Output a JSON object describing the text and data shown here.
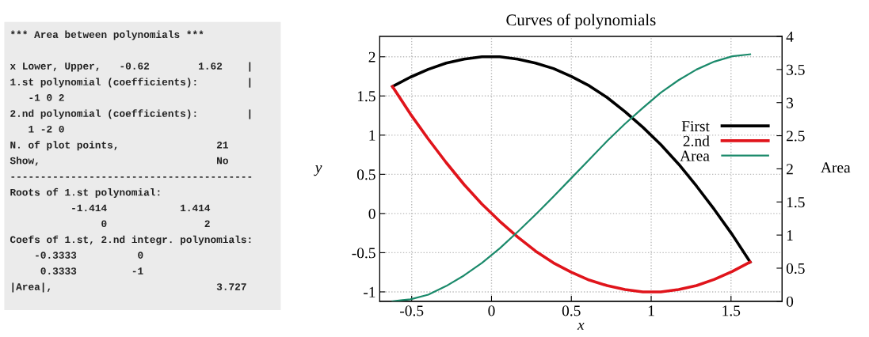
{
  "chart_data": [
    {
      "type": "other",
      "title": "*** Area between polynomials ***",
      "annotations": [
        "x Lower, Upper,   -0.62        1.62    |",
        "1.st polynomial (coefficients):        |",
        "   -1 0 2",
        "2.nd polynomial (coefficients):        |",
        "   1 -2 0",
        "N. of plot points,                21",
        "Show,                             No",
        "----------------------------------------",
        "Roots of 1.st polynomial:",
        "          -1.414            1.414",
        "               0                2",
        "Coefs of 1.st, 2.nd integr. polynomials:",
        "    -0.3333          0",
        "     0.3333         -1",
        "|Area|,                           3.727"
      ]
    },
    {
      "type": "line",
      "title": "Curves of polynomials",
      "xlabel": "x",
      "ylabel": "y",
      "y2label": "Area",
      "x": [
        -0.62,
        -0.508,
        -0.396,
        -0.284,
        -0.172,
        -0.06,
        0.052,
        0.164,
        0.276,
        0.388,
        0.5,
        0.612,
        0.724,
        0.836,
        0.948,
        1.06,
        1.172,
        1.284,
        1.396,
        1.508,
        1.62
      ],
      "series": [
        {
          "name": "First",
          "color": "#000000",
          "values": [
            1.62,
            1.74,
            1.84,
            1.92,
            1.97,
            2.0,
            2.0,
            1.97,
            1.92,
            1.85,
            1.75,
            1.63,
            1.48,
            1.3,
            1.1,
            0.88,
            0.63,
            0.35,
            0.05,
            -0.27,
            -0.62
          ]
        },
        {
          "name": "2.nd",
          "color": "#e0141b",
          "values": [
            1.62,
            1.27,
            0.95,
            0.65,
            0.37,
            0.12,
            -0.1,
            -0.3,
            -0.48,
            -0.63,
            -0.75,
            -0.85,
            -0.92,
            -0.97,
            -1.0,
            -1.0,
            -0.97,
            -0.92,
            -0.84,
            -0.74,
            -0.62
          ]
        },
        {
          "name": "Area",
          "color": "#1b8a6b",
          "axis": "y2",
          "values": [
            0.0,
            0.03,
            0.1,
            0.23,
            0.39,
            0.58,
            0.8,
            1.05,
            1.31,
            1.58,
            1.86,
            2.14,
            2.42,
            2.68,
            2.92,
            3.15,
            3.34,
            3.5,
            3.62,
            3.7,
            3.73
          ]
        }
      ],
      "xlim": [
        -0.7,
        1.82
      ],
      "xticks": [
        -0.5,
        0,
        0.5,
        1,
        1.5
      ],
      "ylim": [
        -1.12,
        2.26
      ],
      "yticks": [
        -1,
        -0.5,
        0,
        0.5,
        1,
        1.5,
        2
      ],
      "y2lim": [
        0,
        4
      ],
      "y2ticks": [
        0,
        0.5,
        1,
        1.5,
        2,
        2.5,
        3,
        3.5,
        4
      ],
      "grid": true,
      "legend": "center right",
      "marker": "none",
      "line_style": "solid"
    }
  ]
}
